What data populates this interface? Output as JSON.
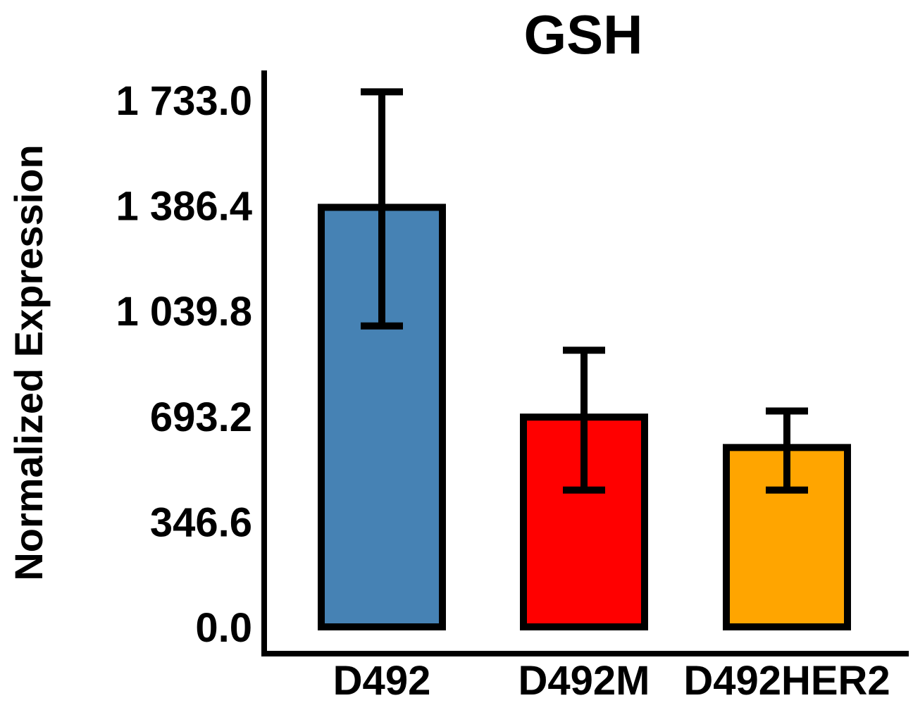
{
  "chart_data": {
    "type": "bar",
    "title": "GSH",
    "xlabel": "",
    "ylabel": "Normalized Expression",
    "ylim": [
      0,
      1733.0
    ],
    "yticks": [
      "0.0",
      "346.6",
      "693.2",
      "1 039.8",
      "1 386.4",
      "1 733.0"
    ],
    "ytick_values": [
      0,
      346.6,
      693.2,
      1039.8,
      1386.4,
      1733.0
    ],
    "grid": false,
    "categories": [
      "D492",
      "D492M",
      "D492HER2"
    ],
    "series": [
      {
        "values": [
          1380,
          690,
          590
        ],
        "error_low": [
          990,
          450,
          450
        ],
        "error_high": [
          1760,
          910,
          710
        ],
        "colors": [
          "#4682b4",
          "#ff0000",
          "#ffa500"
        ]
      }
    ]
  }
}
